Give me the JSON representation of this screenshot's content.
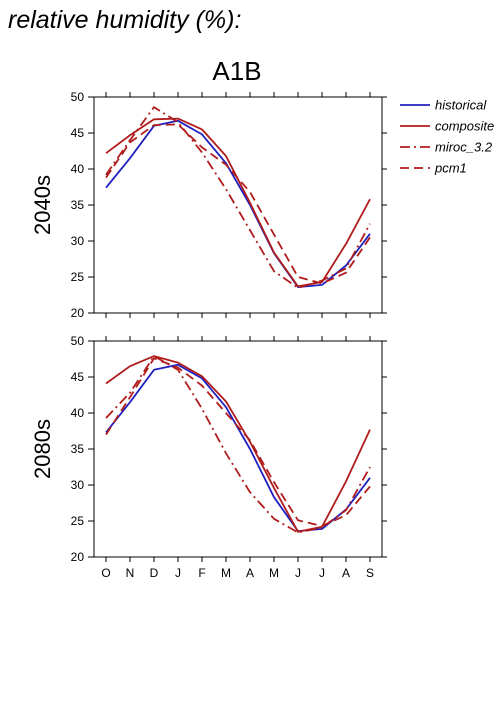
{
  "header": {
    "title": "relative humidity (%):",
    "scenario": "A1B"
  },
  "legend": [
    {
      "label": "historical",
      "color": "#2020c0",
      "dash": "solid"
    },
    {
      "label": "composite",
      "color": "#b01c1c",
      "dash": "solid"
    },
    {
      "label": "miroc_3.2",
      "color": "#b01c1c",
      "dash": "dashdot"
    },
    {
      "label": "pcm1",
      "color": "#b01c1c",
      "dash": "dashed"
    }
  ],
  "chart_data": [
    {
      "type": "line",
      "row_label": "2040s",
      "categories": [
        "O",
        "N",
        "D",
        "J",
        "F",
        "M",
        "A",
        "M",
        "J",
        "J",
        "A",
        "S"
      ],
      "ylim": [
        20,
        50
      ],
      "yticks": [
        20,
        25,
        30,
        35,
        40,
        45,
        50
      ],
      "series": [
        {
          "name": "historical",
          "values": [
            37.4,
            41.5,
            46.0,
            46.7,
            44.8,
            40.8,
            35.0,
            28.3,
            23.6,
            23.9,
            26.6,
            31.0
          ]
        },
        {
          "name": "composite",
          "values": [
            42.2,
            44.7,
            46.9,
            47.0,
            45.5,
            41.8,
            35.3,
            28.4,
            23.7,
            24.3,
            29.6,
            35.8
          ]
        },
        {
          "name": "miroc_3.2",
          "values": [
            39.2,
            44.0,
            48.6,
            46.5,
            42.3,
            37.2,
            31.5,
            25.8,
            23.5,
            24.5,
            26.2,
            32.4
          ]
        },
        {
          "name": "pcm1",
          "values": [
            38.8,
            43.7,
            46.1,
            46.2,
            43.0,
            40.6,
            36.8,
            30.9,
            25.0,
            24.1,
            25.6,
            30.5
          ]
        }
      ]
    },
    {
      "type": "line",
      "row_label": "2080s",
      "categories": [
        "O",
        "N",
        "D",
        "J",
        "F",
        "M",
        "A",
        "M",
        "J",
        "J",
        "A",
        "S"
      ],
      "ylim": [
        20,
        50
      ],
      "yticks": [
        20,
        25,
        30,
        35,
        40,
        45,
        50
      ],
      "series": [
        {
          "name": "historical",
          "values": [
            37.3,
            41.5,
            46.0,
            46.7,
            44.8,
            40.8,
            35.0,
            28.3,
            23.6,
            23.9,
            26.6,
            31.0
          ]
        },
        {
          "name": "composite",
          "values": [
            44.1,
            46.5,
            47.9,
            47.0,
            45.1,
            41.6,
            36.0,
            29.6,
            23.5,
            24.2,
            30.5,
            37.7
          ]
        },
        {
          "name": "miroc_3.2",
          "values": [
            39.3,
            42.8,
            47.9,
            46.0,
            40.6,
            34.4,
            29.0,
            25.3,
            23.4,
            24.1,
            26.5,
            32.5
          ]
        },
        {
          "name": "pcm1",
          "values": [
            37.0,
            42.2,
            47.6,
            46.3,
            43.8,
            40.0,
            36.2,
            30.4,
            25.1,
            24.3,
            25.8,
            29.8
          ]
        }
      ]
    }
  ]
}
